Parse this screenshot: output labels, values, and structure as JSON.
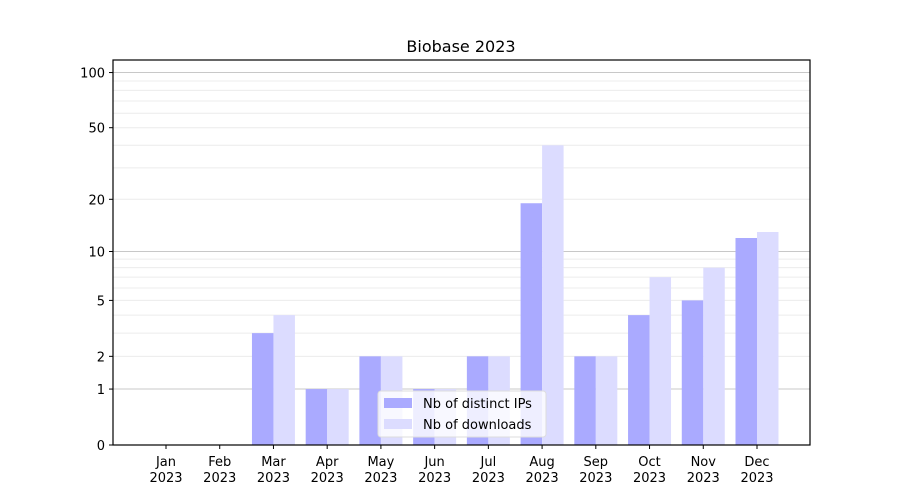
{
  "chart_data": {
    "type": "bar",
    "title": "Biobase 2023",
    "xlabel": "",
    "ylabel": "",
    "y_scale": "log(1+y)",
    "ylim": [
      0,
      117
    ],
    "yticks": [
      0,
      1,
      2,
      5,
      10,
      20,
      50,
      100
    ],
    "grid": true,
    "legend_position": "lower-center",
    "categories": [
      "Jan\n2023",
      "Feb\n2023",
      "Mar\n2023",
      "Apr\n2023",
      "May\n2023",
      "Jun\n2023",
      "Jul\n2023",
      "Aug\n2023",
      "Sep\n2023",
      "Oct\n2023",
      "Nov\n2023",
      "Dec\n2023"
    ],
    "series": [
      {
        "name": "Nb of distinct IPs",
        "color": "#aaaaff",
        "values": [
          0,
          0,
          3,
          1,
          2,
          1,
          2,
          19,
          2,
          4,
          5,
          12
        ]
      },
      {
        "name": "Nb of downloads",
        "color": "#dcdcff",
        "values": [
          0,
          0,
          4,
          1,
          2,
          1,
          2,
          40,
          2,
          7,
          8,
          13
        ]
      }
    ]
  }
}
